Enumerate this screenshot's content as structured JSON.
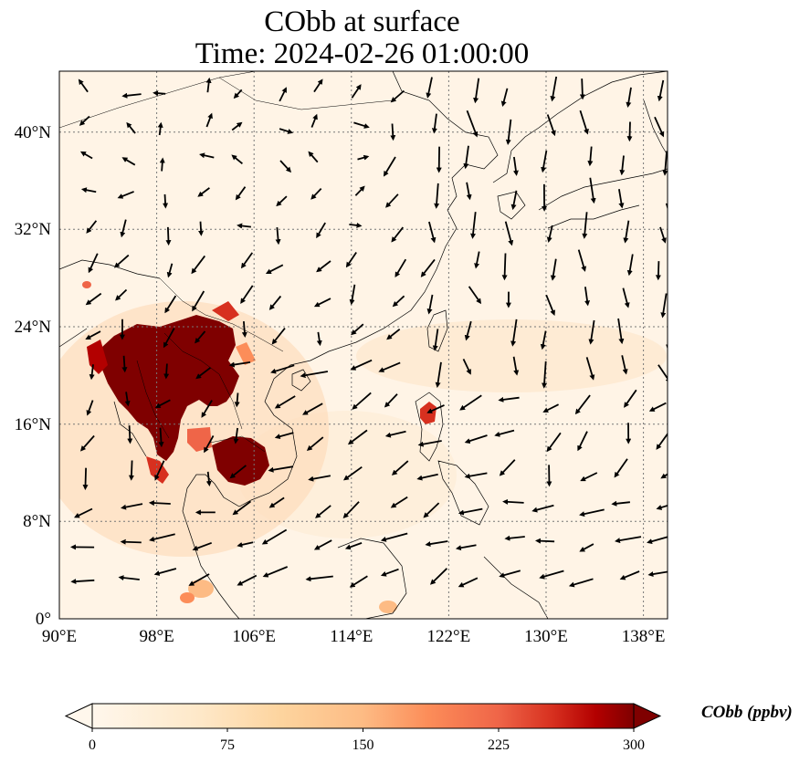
{
  "title": {
    "line1": "CObb at surface",
    "line2": "Time: 2024-02-26 01:00:00"
  },
  "map": {
    "lon_ticks": [
      "90°E",
      "98°E",
      "106°E",
      "114°E",
      "122°E",
      "130°E",
      "138°E"
    ],
    "lat_ticks": [
      "0°",
      "8°N",
      "16°N",
      "24°N",
      "32°N",
      "40°N"
    ],
    "lon_range": [
      90,
      140
    ],
    "lat_range": [
      0,
      45
    ],
    "gridlines": true,
    "coastlines": true,
    "vectors": "wind arrows"
  },
  "colorbar": {
    "label": "CObb (ppbv)",
    "ticks": [
      "0",
      "75",
      "150",
      "225",
      "300"
    ],
    "range": [
      0,
      300
    ],
    "colormap": "OrRd",
    "colors": [
      "#fff7ec",
      "#fdd49e",
      "#fc8d59",
      "#d7301f",
      "#7f0000"
    ],
    "extend": "both"
  }
}
